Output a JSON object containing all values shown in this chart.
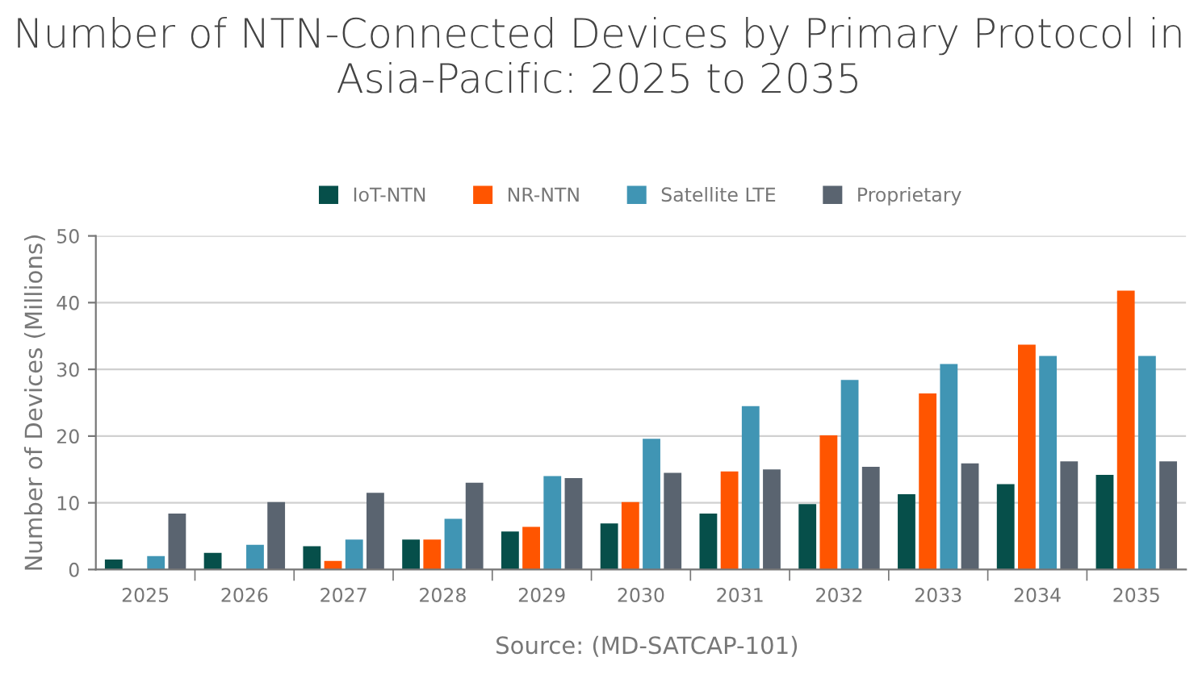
{
  "chart_data": {
    "type": "bar",
    "title": "Number of NTN-Connected Devices by Primary Protocol in Asia-Pacific: 2025 to 2035",
    "ylabel": "Number of Devices (Millions)",
    "categories": [
      "2025",
      "2026",
      "2027",
      "2028",
      "2029",
      "2030",
      "2031",
      "2032",
      "2033",
      "2034",
      "2035"
    ],
    "series": [
      {
        "name": "IoT-NTN",
        "color": "#064f4a",
        "values": [
          1.5,
          2.5,
          3.5,
          4.5,
          5.7,
          6.9,
          8.4,
          9.8,
          11.3,
          12.8,
          14.2
        ]
      },
      {
        "name": "NR-NTN",
        "color": "#ff5500",
        "values": [
          0,
          0,
          1.3,
          4.5,
          6.4,
          10.1,
          14.7,
          20.1,
          26.4,
          33.7,
          41.8
        ]
      },
      {
        "name": "Satellite LTE",
        "color": "#4095b4",
        "values": [
          2.0,
          3.7,
          4.5,
          7.6,
          14.0,
          19.6,
          24.5,
          28.4,
          30.8,
          32.0,
          32.0
        ]
      },
      {
        "name": "Proprietary",
        "color": "#5a6470",
        "values": [
          8.4,
          10.1,
          11.5,
          13.0,
          13.7,
          14.5,
          15.0,
          15.4,
          15.9,
          16.2,
          16.2
        ]
      }
    ],
    "ylim": [
      0,
      50
    ],
    "yticks": [
      0,
      10,
      20,
      30,
      40,
      50
    ],
    "grid": "y",
    "legend": "top",
    "annotations": [
      "Source: (MD-SATCAP-101)"
    ]
  }
}
